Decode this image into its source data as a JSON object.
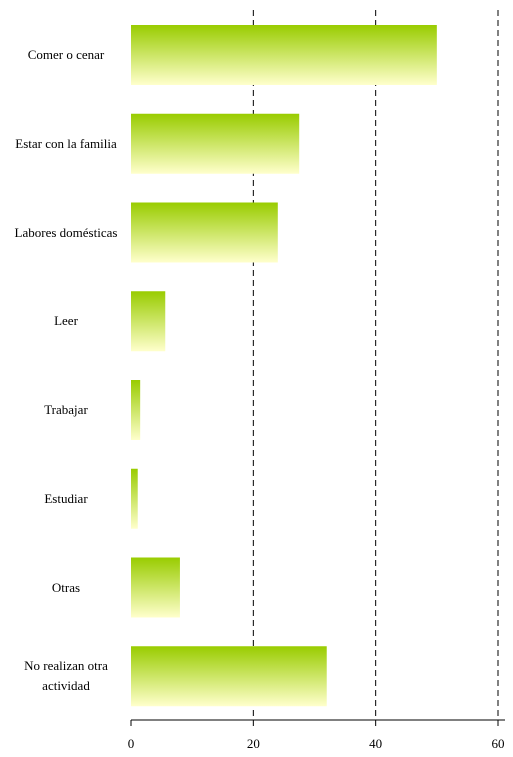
{
  "chart_data": {
    "type": "barh",
    "categories": [
      "Comer o cenar",
      "Estar con la familia",
      "Labores domésticas",
      "Leer",
      "Trabajar",
      "Estudiar",
      "Otras",
      "No realizan otra actividad"
    ],
    "values": [
      50,
      27.5,
      24,
      5.6,
      1.5,
      1.1,
      8,
      32
    ],
    "gradient": [
      "#99cc00",
      "#ffffcc"
    ],
    "xlim": [
      0,
      60
    ],
    "xticks": [
      0,
      20,
      40,
      60
    ],
    "grid": true
  }
}
